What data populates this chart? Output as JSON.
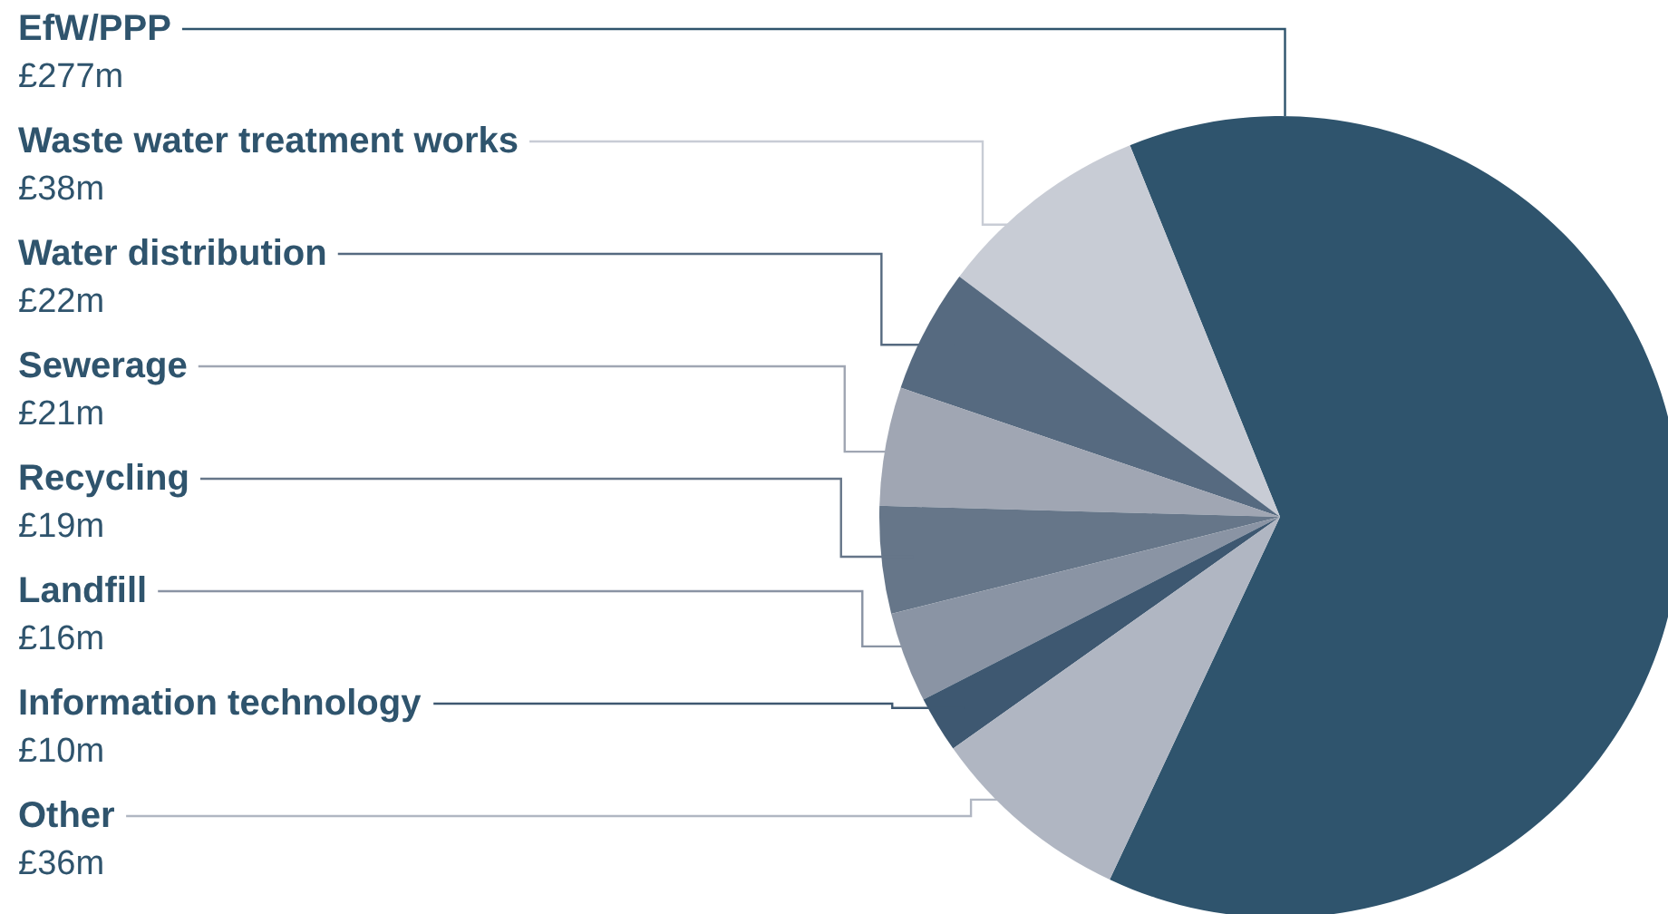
{
  "chart_data": {
    "type": "pie",
    "categories": [
      "EfW/PPP",
      "Waste water treatment works",
      "Water distribution",
      "Sewerage",
      "Recycling",
      "Landfill",
      "Information technology",
      "Other"
    ],
    "values": [
      277,
      38,
      22,
      21,
      19,
      16,
      10,
      36
    ],
    "value_labels": [
      "£277m",
      "£38m",
      "£22m",
      "£21m",
      "£19m",
      "£16m",
      "£10m",
      "£36m"
    ],
    "colors": [
      "#2f546d",
      "#c8ccd5",
      "#566a80",
      "#a0a6b3",
      "#667689",
      "#8a94a4",
      "#3e5871",
      "#b0b6c2"
    ]
  }
}
